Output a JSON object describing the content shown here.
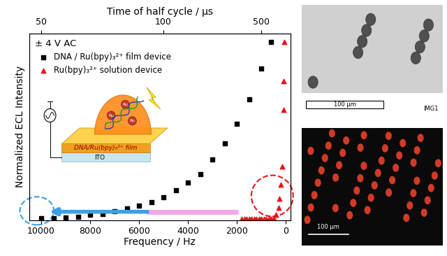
{
  "chart_data": {
    "type": "scatter",
    "legend_title": "± 4 V AC",
    "x_label": "Frequency / Hz",
    "y_label": "Normalized ECL Intensity",
    "xlim": [
      10500,
      -200
    ],
    "ylim": [
      0,
      1.05
    ],
    "xticks": [
      10000,
      8000,
      6000,
      4000,
      2000,
      0
    ],
    "yticks": [],
    "tick_labels": "x",
    "legend": "upper left",
    "top_axis": {
      "label": "Time of half cycle / μs",
      "ticks": [
        {
          "value": 10000,
          "label": "50"
        },
        {
          "value": 5000,
          "label": "100"
        },
        {
          "value": 1000,
          "label": "500"
        }
      ]
    },
    "series": [
      {
        "name": "DNA / Ru(bpy)₃²⁺ film device",
        "color": "#000000",
        "marker": "square",
        "x": [
          10000,
          9500,
          9000,
          8500,
          8000,
          7500,
          7000,
          6500,
          6000,
          5500,
          5000,
          4500,
          4000,
          3500,
          3000,
          2500,
          2000,
          1500,
          1000,
          600
        ],
        "values": [
          0.01,
          0.01,
          0.015,
          0.02,
          0.03,
          0.035,
          0.05,
          0.065,
          0.08,
          0.1,
          0.13,
          0.17,
          0.21,
          0.26,
          0.34,
          0.43,
          0.54,
          0.68,
          0.85,
          1.0
        ]
      },
      {
        "name": "Ru(bpy)₃²⁺ solution device",
        "color": "#e8141b",
        "marker": "triangle",
        "x": [
          1800,
          1700,
          1600,
          1500,
          1400,
          1300,
          1200,
          1100,
          1000,
          900,
          800,
          700,
          600,
          500,
          400,
          300,
          250,
          200,
          150,
          100,
          75,
          50
        ],
        "values": [
          0.005,
          0.005,
          0.005,
          0.005,
          0.005,
          0.005,
          0.005,
          0.005,
          0.005,
          0.005,
          0.005,
          0.005,
          0.005,
          0.01,
          0.03,
          0.07,
          0.12,
          0.2,
          0.3,
          0.62,
          0.78,
          1.0
        ]
      }
    ]
  },
  "inset": {
    "film_label": "DNA/Ru(bpy)₃²⁺ film",
    "substrate_label": "ITO",
    "dome_labels": [
      "Ru",
      "Ru",
      "Ru"
    ]
  },
  "images": [
    {
      "scale_label": "100 μm",
      "caption": "IMG1"
    },
    {
      "scale_label": "100 μm"
    }
  ]
}
